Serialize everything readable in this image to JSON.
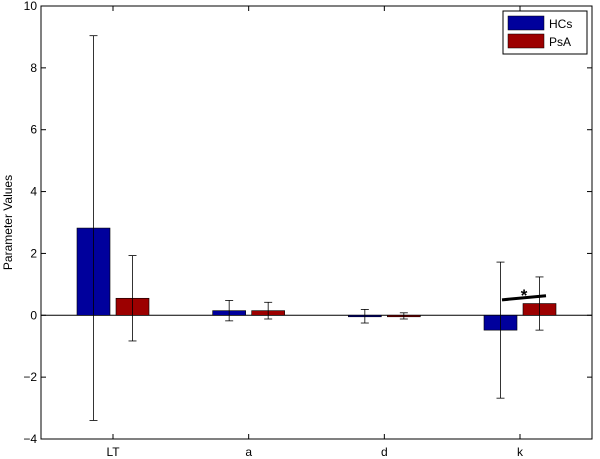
{
  "chart_data": {
    "type": "bar",
    "categories": [
      "LT",
      "a",
      "d",
      "k"
    ],
    "ylabel": "Parameter Values",
    "xlabel": "",
    "title": "",
    "ylim": [
      -4,
      10
    ],
    "yticks": [
      -4,
      -2,
      0,
      2,
      4,
      6,
      8,
      10
    ],
    "yticklabels": [
      "−4",
      "−2",
      "0",
      "2",
      "4",
      "6",
      "8",
      "10"
    ],
    "legend_position": "top-right",
    "grid": false,
    "series": [
      {
        "name": "HCs",
        "color": "#00009C",
        "values": [
          2.82,
          0.15,
          -0.03,
          -0.48
        ],
        "errors": [
          6.22,
          0.33,
          0.22,
          2.2
        ]
      },
      {
        "name": "PsA",
        "color": "#9C0000",
        "values": [
          0.55,
          0.15,
          -0.02,
          0.38
        ],
        "errors": [
          1.38,
          0.27,
          0.1,
          0.86
        ]
      }
    ],
    "annotations": [
      {
        "text": "*",
        "category": "k"
      }
    ]
  }
}
